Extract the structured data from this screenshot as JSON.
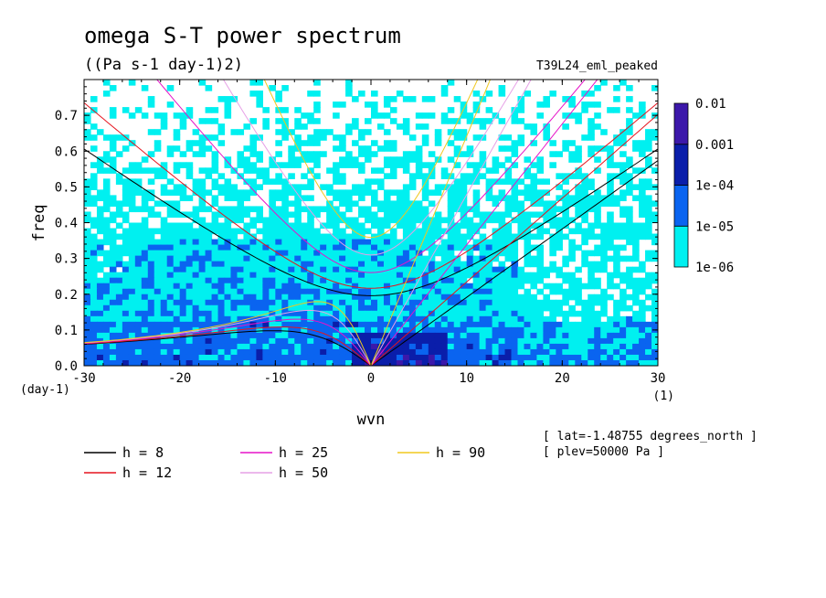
{
  "chart_data": {
    "type": "heatmap",
    "title": "omega S-T power spectrum",
    "subtitle": "((Pa s-1 day-1)2)",
    "run_label": "T39L24_eml_peaked",
    "xlabel": "wvn",
    "ylabel": "freq",
    "x_unit": "(1)",
    "y_unit": "(day-1)",
    "xlim": [
      -30,
      30
    ],
    "ylim": [
      0.0,
      0.8
    ],
    "x_ticks": [
      -30,
      -20,
      -10,
      0,
      10,
      20,
      30
    ],
    "x_tick_labels": [
      "-30",
      "-20",
      "-10",
      "0",
      "10",
      "20",
      "30"
    ],
    "y_ticks": [
      0.0,
      0.1,
      0.2,
      0.3,
      0.4,
      0.5,
      0.6,
      0.7
    ],
    "y_tick_labels": [
      "0.0",
      "0.1",
      "0.2",
      "0.3",
      "0.4",
      "0.5",
      "0.6",
      "0.7"
    ],
    "colorbar": {
      "levels": [
        "1e-06",
        "1e-05",
        "1e-04",
        "0.001",
        "0.01"
      ],
      "colors": [
        "#00f0f0",
        "#0a64f0",
        "#0a1eaa",
        "#3c18aa"
      ]
    },
    "dispersion_curves": [
      {
        "label": "h =  8",
        "h": 8,
        "color": "#000000"
      },
      {
        "label": "h = 12",
        "h": 12,
        "color": "#e6141e"
      },
      {
        "label": "h = 25",
        "h": 25,
        "color": "#e614c8"
      },
      {
        "label": "h = 50",
        "h": 50,
        "color": "#e6a0e6"
      },
      {
        "label": "h = 90",
        "h": 90,
        "color": "#f0c81e"
      }
    ],
    "annotations": [
      "[ lat=-1.48755 degrees_north ]",
      "[ plev=50000 Pa ]"
    ]
  }
}
